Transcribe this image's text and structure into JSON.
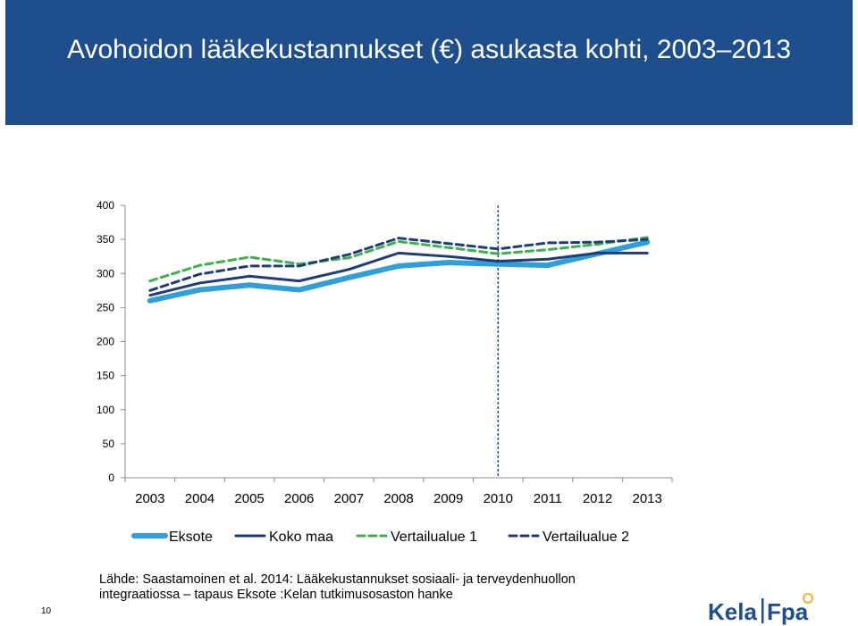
{
  "slide": {
    "title": "Avohoidon lääkekustannukset (€) asukasta kohti, 2003–2013",
    "source_line1": "Lähde: Saastamoinen et al. 2014: Lääkekustannukset sosiaali- ja terveydenhuollon",
    "source_line2": "integraatiossa – tapaus Eksote :Kelan tutkimusosaston hanke",
    "page_number": "10",
    "logo_text_left": "Kela",
    "logo_text_right": "Fpa"
  },
  "colors": {
    "header": "#1f4e8c",
    "eksote": "#2f9fd8",
    "koko_maa": "#1f3c78",
    "vertailualue1": "#3cb34a",
    "vertailualue2": "#1f3c78",
    "marker_line": "#1f4e8c",
    "logo": "#1f4e8c",
    "logo_accent": "#f2b134"
  },
  "chart_data": {
    "type": "line",
    "title": "",
    "xlabel": "",
    "ylabel": "",
    "x": [
      "2003",
      "2004",
      "2005",
      "2006",
      "2007",
      "2008",
      "2009",
      "2010",
      "2011",
      "2012",
      "2013"
    ],
    "ylim": [
      0,
      400
    ],
    "yticks": [
      0,
      50,
      100,
      150,
      200,
      250,
      300,
      350,
      400
    ],
    "grid": false,
    "legend": "bottom",
    "vertical_marker_x": "2010",
    "series": [
      {
        "name": "Eksote",
        "style": "solid-thick",
        "values": [
          260,
          276,
          283,
          276,
          294,
          311,
          316,
          314,
          312,
          329,
          346
        ]
      },
      {
        "name": "Koko maa",
        "style": "solid",
        "values": [
          268,
          286,
          296,
          289,
          306,
          330,
          325,
          318,
          321,
          330,
          330
        ]
      },
      {
        "name": "Vertailualue 1",
        "style": "dashed",
        "values": [
          289,
          312,
          324,
          314,
          323,
          347,
          338,
          329,
          335,
          343,
          353
        ]
      },
      {
        "name": "Vertailualue 2",
        "style": "dashed",
        "values": [
          275,
          299,
          311,
          311,
          328,
          352,
          344,
          336,
          345,
          346,
          350
        ]
      }
    ]
  }
}
